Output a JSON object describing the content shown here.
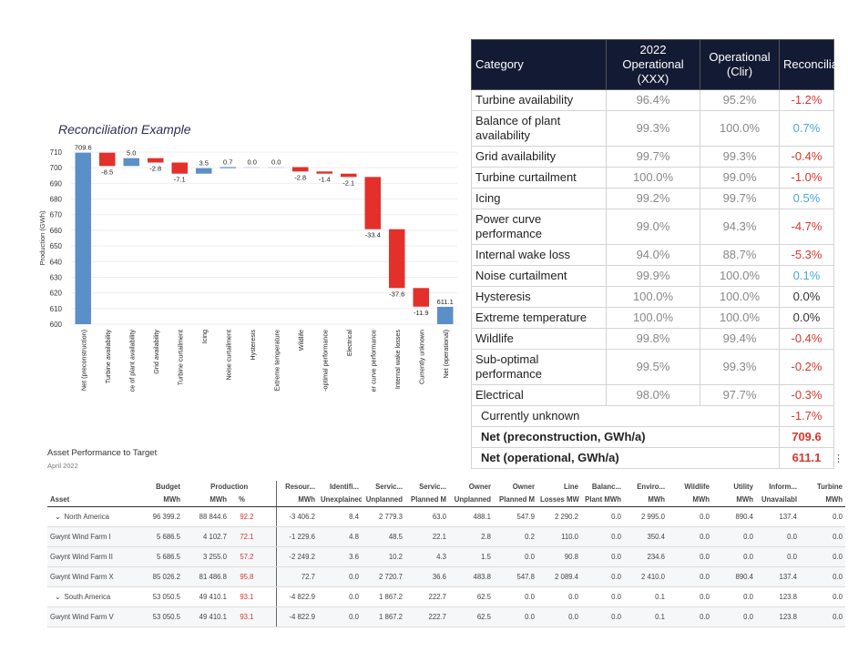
{
  "chart_data": {
    "type": "waterfall",
    "title": "Reconciliation Example",
    "ylabel": "Production (GWh)",
    "ylim": [
      600,
      710
    ],
    "yticks": [
      600,
      610,
      620,
      630,
      640,
      650,
      660,
      670,
      680,
      690,
      700,
      710
    ],
    "grid": true,
    "categories": [
      "Net (preconstruction)",
      "Turbine availability",
      "Balance of plant availability",
      "Grid availability",
      "Turbine curtailment",
      "Icing",
      "Noise curtailment",
      "Hysteresis",
      "Extreme temperature",
      "Wildlife",
      "Sub-optimal performance",
      "Electrical",
      "Power curve performance",
      "Internal wake losses",
      "Currently unknown",
      "Net (operational)"
    ],
    "values": [
      709.6,
      -8.5,
      5.0,
      -2.8,
      -7.1,
      3.5,
      0.7,
      0.0,
      0.0,
      -2.8,
      -1.4,
      -2.1,
      -33.4,
      -37.6,
      -11.9,
      611.1
    ],
    "labels": [
      "709.6",
      "-8.5",
      "5.0",
      "-2.8",
      "-7.1",
      "3.5",
      "0.7",
      "0.0",
      "0.0",
      "-2.8",
      "-1.4",
      "-2.1",
      "-33.4",
      "-37.6",
      "-11.9",
      "611.1"
    ],
    "colors": {
      "total": "#5b8fc7",
      "increase": "#5b8fc7",
      "decrease": "#e3302b"
    }
  },
  "reconciliation": {
    "headers": [
      "Category",
      "2022 Operational (XXX)",
      "Operational (Clir)",
      "Reconciliation"
    ],
    "rows": [
      [
        "Turbine availability",
        "96.4%",
        "95.2%",
        "-1.2%"
      ],
      [
        "Balance of plant availability",
        "99.3%",
        "100.0%",
        "0.7%"
      ],
      [
        "Grid availability",
        "99.7%",
        "99.3%",
        "-0.4%"
      ],
      [
        "Turbine curtailment",
        "100.0%",
        "99.0%",
        "-1.0%"
      ],
      [
        "Icing",
        "99.2%",
        "99.7%",
        "0.5%"
      ],
      [
        "Power curve performance",
        "99.0%",
        "94.3%",
        "-4.7%"
      ],
      [
        "Internal wake loss",
        "94.0%",
        "88.7%",
        "-5.3%"
      ],
      [
        "Noise curtailment",
        "99.9%",
        "100.0%",
        "0.1%"
      ],
      [
        "Hysteresis",
        "100.0%",
        "100.0%",
        "0.0%"
      ],
      [
        "Extreme temperature",
        "100.0%",
        "100.0%",
        "0.0%"
      ],
      [
        "Wildlife",
        "99.8%",
        "99.4%",
        "-0.4%"
      ],
      [
        "Sub-optimal performance",
        "99.5%",
        "99.3%",
        "-0.2%"
      ],
      [
        "Electrical",
        "98.0%",
        "97.7%",
        "-0.3%"
      ]
    ],
    "summary": [
      [
        "Currently unknown",
        "-1.7%"
      ],
      [
        "Net (preconstruction, GWh/a)",
        "709.6"
      ],
      [
        "Net (operational, GWh/a)",
        "611.1"
      ]
    ],
    "colors": {
      "negative": "#d9352b",
      "positive": "#4aa8d8",
      "zero": "#333333"
    }
  },
  "asset_table": {
    "title": "Asset Performance to Target",
    "subtitle": "April 2022",
    "menu_icon": "more-vertical-icon",
    "header_top": [
      "",
      "Budget",
      "Production",
      "",
      "Resour...",
      "Identifi...",
      "Servic...",
      "Servic...",
      "Owner",
      "Owner",
      "Line",
      "Balanc...",
      "Enviro...",
      "Wildlife",
      "Utility",
      "Inform...",
      "Turbine"
    ],
    "header_bottom": [
      "Asset",
      "MWh",
      "MWh",
      "%",
      "MWh",
      "Unexplained",
      "Unplanned",
      "Planned M",
      "Unplanned",
      "Planned M",
      "Losses MW",
      "Plant MWh",
      "MWh",
      "MWh",
      "MWh",
      "Unavailabl",
      "MWh"
    ],
    "rows": [
      {
        "group": true,
        "cells": [
          "North America",
          "96 399.2",
          "88 844.6",
          "92.2",
          "-3 406.2",
          "8.4",
          "2 779.3",
          "63.0",
          "488.1",
          "547.9",
          "2 290.2",
          "0.0",
          "2 995.0",
          "0.0",
          "890.4",
          "137.4",
          "0.0"
        ]
      },
      {
        "group": false,
        "cells": [
          "Gwynt Wind Farm I",
          "5 686.5",
          "4 102.7",
          "72.1",
          "-1 229.6",
          "4.8",
          "48.5",
          "22.1",
          "2.8",
          "0.2",
          "110.0",
          "0.0",
          "350.4",
          "0.0",
          "0.0",
          "0.0",
          "0.0"
        ]
      },
      {
        "group": false,
        "cells": [
          "Gwynt Wind Farm II",
          "5 686.5",
          "3 255.0",
          "57.2",
          "-2 249.2",
          "3.6",
          "10.2",
          "4.3",
          "1.5",
          "0.0",
          "90.8",
          "0.0",
          "234.6",
          "0.0",
          "0.0",
          "0.0",
          "0.0"
        ]
      },
      {
        "group": false,
        "cells": [
          "Gwynt Wind Farm X",
          "85 026.2",
          "81 486.8",
          "95.8",
          "72.7",
          "0.0",
          "2 720.7",
          "36.6",
          "483.8",
          "547.8",
          "2 089.4",
          "0.0",
          "2 410.0",
          "0.0",
          "890.4",
          "137.4",
          "0.0"
        ]
      },
      {
        "group": true,
        "cells": [
          "South America",
          "53 050.5",
          "49 410.1",
          "93.1",
          "-4 822.9",
          "0.0",
          "1 867.2",
          "222.7",
          "62.5",
          "0.0",
          "0.0",
          "0.0",
          "0.1",
          "0.0",
          "0.0",
          "123.8",
          "0.0"
        ]
      },
      {
        "group": false,
        "cells": [
          "Gwynt Wind Farm V",
          "53 050.5",
          "49 410.1",
          "93.1",
          "-4 822.9",
          "0.0",
          "1 867.2",
          "222.7",
          "62.5",
          "0.0",
          "0.0",
          "0.0",
          "0.1",
          "0.0",
          "0.0",
          "123.8",
          "0.0"
        ]
      }
    ]
  }
}
